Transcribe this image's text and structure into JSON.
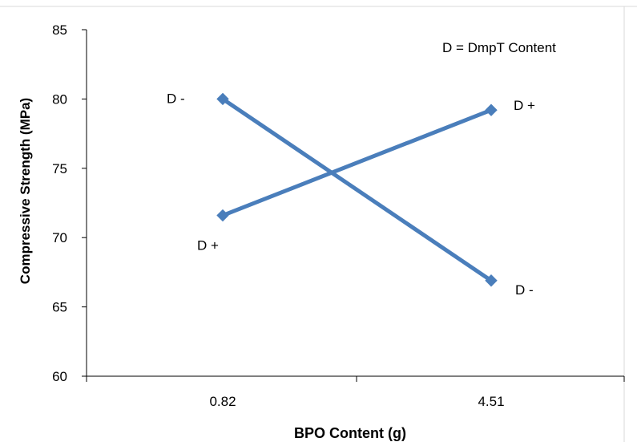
{
  "chart_data": {
    "type": "line",
    "title": "",
    "xlabel": "BPO Content (g)",
    "ylabel": "Compressive Strength (MPa)",
    "categories": [
      "0.82",
      "4.51"
    ],
    "ylim": [
      60,
      85
    ],
    "yticks": [
      60,
      65,
      70,
      75,
      80,
      85
    ],
    "grid": false,
    "legend_note": "D = DmpT Content",
    "series": [
      {
        "name": "D -",
        "values": [
          80.0,
          66.9
        ],
        "point_labels": [
          "D -",
          "D -"
        ]
      },
      {
        "name": "D +",
        "values": [
          71.6,
          79.2
        ],
        "point_labels": [
          "D +",
          "D +"
        ]
      }
    ],
    "colors": {
      "line": "#4a7ebb",
      "axis": "#000000"
    }
  }
}
